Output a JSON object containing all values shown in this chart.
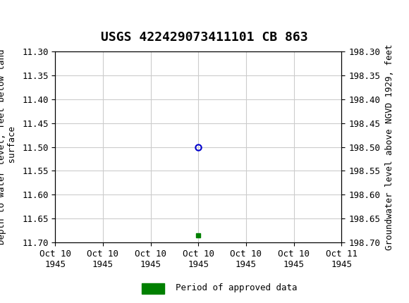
{
  "title": "USGS 422429073411101 CB 863",
  "left_ylabel": "Depth to water level, feet below land\n surface",
  "right_ylabel": "Groundwater level above NGVD 1929, feet",
  "ylim_left": [
    11.3,
    11.7
  ],
  "ylim_right": [
    198.3,
    198.7
  ],
  "yticks_left": [
    11.3,
    11.35,
    11.4,
    11.45,
    11.5,
    11.55,
    11.6,
    11.65,
    11.7
  ],
  "yticks_right": [
    198.3,
    198.35,
    198.4,
    198.45,
    198.5,
    198.55,
    198.6,
    198.65,
    198.7
  ],
  "x_data_circle": [
    0.5
  ],
  "y_data_circle": [
    11.5
  ],
  "x_data_square": [
    0.5
  ],
  "y_data_square": [
    11.685
  ],
  "circle_color": "#0000cc",
  "square_color": "#008000",
  "header_bg_color": "#1a6b3c",
  "bg_color": "#ffffff",
  "grid_color": "#cccccc",
  "tick_label_fontsize": 9,
  "title_fontsize": 13,
  "xlabel_labels": [
    "Oct 10\n1945",
    "Oct 10\n1945",
    "Oct 10\n1945",
    "Oct 10\n1945",
    "Oct 10\n1945",
    "Oct 10\n1945",
    "Oct 11\n1945"
  ],
  "xlim": [
    0,
    1
  ],
  "legend_label": "Period of approved data",
  "legend_color": "#008000"
}
